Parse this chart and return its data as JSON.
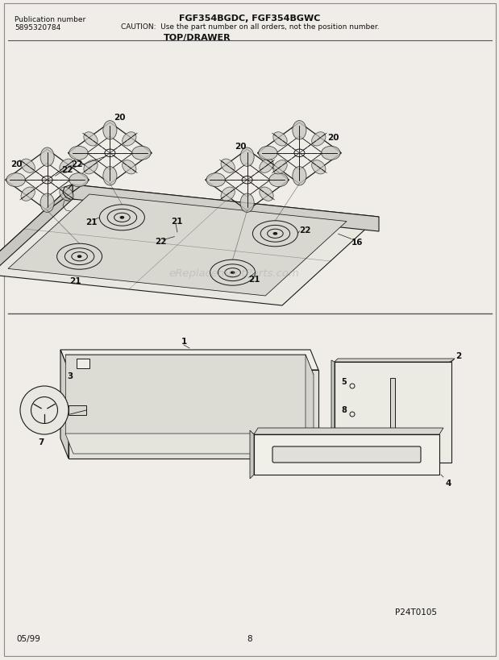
{
  "title_model": "FGF354BGDC, FGF354BGWC",
  "title_caution": "CAUTION:  Use the part number on all orders, not the position number.",
  "pub_label": "Publication number",
  "pub_number": "5895320784",
  "section_title": "TOP/DRAWER",
  "watermark": "eReplacementParts.com",
  "bottom_left": "05/99",
  "bottom_center": "8",
  "bottom_right": "P24T0105",
  "bg_color": "#f0ede8",
  "diagram_line_color": "#1a1a1a",
  "text_color": "#111111"
}
